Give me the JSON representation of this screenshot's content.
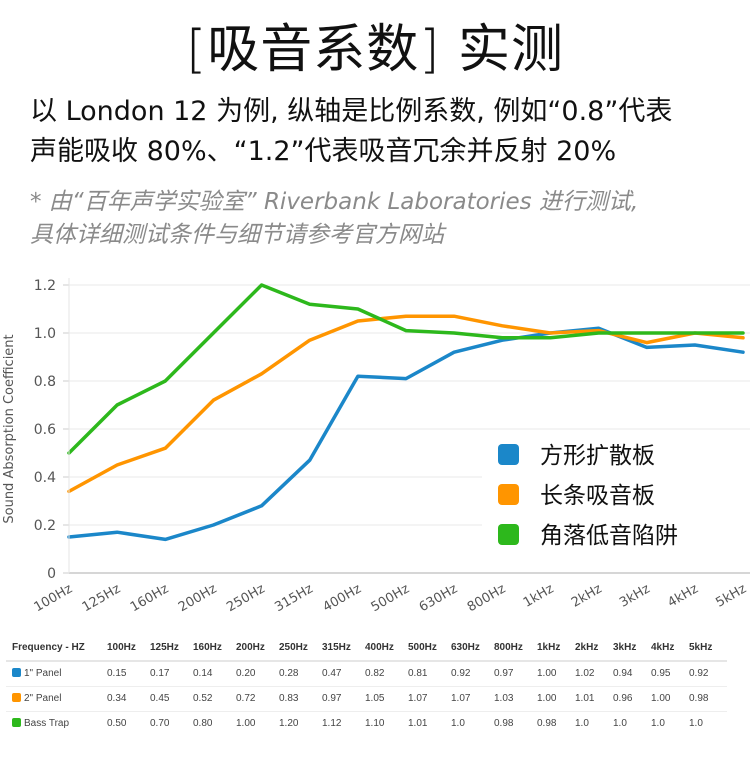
{
  "header": {
    "title": "[吸音系数] 实测",
    "subtitle_line1": "以 London 12 为例, 纵轴是比例系数, 例如“0.8”代表",
    "subtitle_line2": "声能吸收 80%、“1.2”代表吸音冗余并反射 20%",
    "note_line1": "* 由“百年声学实验室” Riverbank Laboratories 进行测试,",
    "note_line2": "具体详细测试条件与细节请参考官方网站"
  },
  "chart_data": {
    "type": "line",
    "title": "",
    "xlabel": "",
    "ylabel": "Sound Absorption Coefficient",
    "ylim": [
      0,
      1.2
    ],
    "yticks": [
      "0",
      "0.2",
      "0.4",
      "0.6",
      "0.8",
      "1.0",
      "1.2"
    ],
    "ytick_values": [
      0,
      0.2,
      0.4,
      0.6,
      0.8,
      1.0,
      1.2
    ],
    "grid": true,
    "legend_position": "bottom-right",
    "categories": [
      "100Hz",
      "125Hz",
      "160Hz",
      "200Hz",
      "250Hz",
      "315Hz",
      "400Hz",
      "500Hz",
      "630Hz",
      "800Hz",
      "1kHz",
      "2kHz",
      "3kHz",
      "4kHz",
      "5kHz"
    ],
    "series": [
      {
        "name": "方形扩散板",
        "color": "#1b87c9",
        "values": [
          0.15,
          0.17,
          0.14,
          0.2,
          0.28,
          0.47,
          0.82,
          0.81,
          0.92,
          0.97,
          1.0,
          1.02,
          0.94,
          0.95,
          0.92
        ]
      },
      {
        "name": "长条吸音板",
        "color": "#ff9500",
        "values": [
          0.34,
          0.45,
          0.52,
          0.72,
          0.83,
          0.97,
          1.05,
          1.07,
          1.07,
          1.03,
          1.0,
          1.01,
          0.96,
          1.0,
          0.98
        ]
      },
      {
        "name": "角落低音陷阱",
        "color": "#2db81c",
        "values": [
          0.5,
          0.7,
          0.8,
          1.0,
          1.2,
          1.12,
          1.1,
          1.01,
          1.0,
          0.98,
          0.98,
          1.0,
          1.0,
          1.0,
          1.0
        ]
      }
    ]
  },
  "table": {
    "header_label": "Frequency - HZ",
    "columns": [
      "100Hz",
      "125Hz",
      "160Hz",
      "200Hz",
      "250Hz",
      "315Hz",
      "400Hz",
      "500Hz",
      "630Hz",
      "800Hz",
      "1kHz",
      "2kHz",
      "3kHz",
      "4kHz",
      "5kHz"
    ],
    "rows": [
      {
        "label": "1\" Panel",
        "color": "#1b87c9",
        "values": [
          "0.15",
          "0.17",
          "0.14",
          "0.20",
          "0.28",
          "0.47",
          "0.82",
          "0.81",
          "0.92",
          "0.97",
          "1.00",
          "1.02",
          "0.94",
          "0.95",
          "0.92"
        ]
      },
      {
        "label": "2\" Panel",
        "color": "#ff9500",
        "values": [
          "0.34",
          "0.45",
          "0.52",
          "0.72",
          "0.83",
          "0.97",
          "1.05",
          "1.07",
          "1.07",
          "1.03",
          "1.00",
          "1.01",
          "0.96",
          "1.00",
          "0.98"
        ]
      },
      {
        "label": "Bass Trap",
        "color": "#2db81c",
        "values": [
          "0.50",
          "0.70",
          "0.80",
          "1.00",
          "1.20",
          "1.12",
          "1.10",
          "1.01",
          "1.0",
          "0.98",
          "0.98",
          "1.0",
          "1.0",
          "1.0",
          "1.0"
        ]
      }
    ]
  }
}
